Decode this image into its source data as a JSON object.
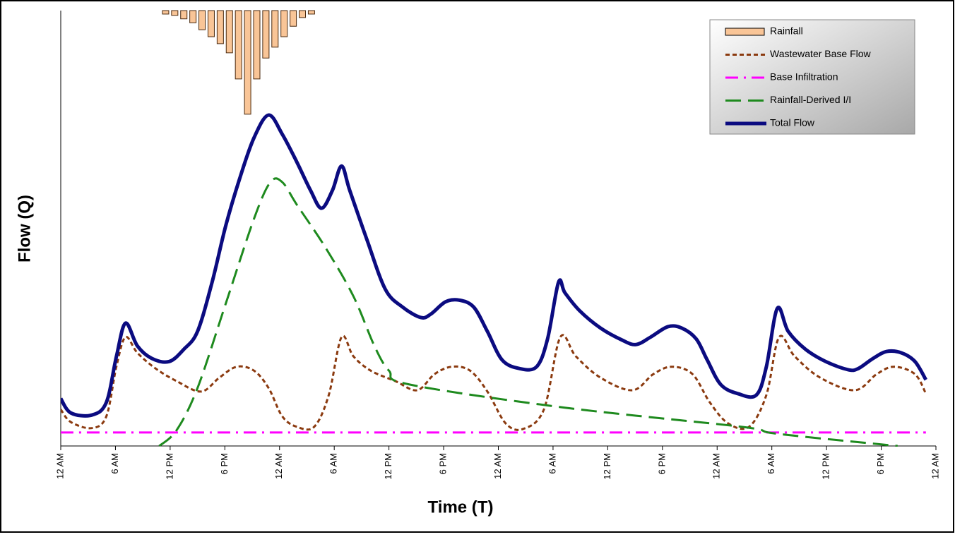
{
  "chart_data": {
    "type": "line",
    "xlabel": "Time (T)",
    "ylabel": "Flow (Q)",
    "xlim": [
      0,
      96
    ],
    "ylim": [
      0,
      100
    ],
    "y2lim": [
      100,
      0
    ],
    "xticks": [
      {
        "value": 0,
        "label": "12 AM"
      },
      {
        "value": 6,
        "label": "6 AM"
      },
      {
        "value": 12,
        "label": "12 PM"
      },
      {
        "value": 18,
        "label": "6 PM"
      },
      {
        "value": 24,
        "label": "12 AM"
      },
      {
        "value": 30,
        "label": "6 AM"
      },
      {
        "value": 36,
        "label": "12 PM"
      },
      {
        "value": 42,
        "label": "6 PM"
      },
      {
        "value": 48,
        "label": "12 AM"
      },
      {
        "value": 54,
        "label": "6 AM"
      },
      {
        "value": 60,
        "label": "12 PM"
      },
      {
        "value": 66,
        "label": "6 PM"
      },
      {
        "value": 72,
        "label": "12 AM"
      },
      {
        "value": 78,
        "label": "6 AM"
      },
      {
        "value": 84,
        "label": "12 PM"
      },
      {
        "value": 90,
        "label": "6 PM"
      },
      {
        "value": 96,
        "label": "12 AM"
      }
    ],
    "legend": "top-right",
    "series": [
      {
        "name": "Rainfall",
        "kind": "bar",
        "axis": "y2",
        "color": "#f9c597",
        "edge": "#4a2a10",
        "x": [
          11.5,
          12.5,
          13.5,
          14.5,
          15.5,
          16.5,
          17.5,
          18.5,
          19.5,
          20.5,
          21.5,
          22.5,
          23.5,
          24.5,
          25.5,
          26.5,
          27.5
        ],
        "values": [
          0.8,
          1.1,
          1.9,
          2.8,
          4.4,
          6.0,
          7.6,
          9.7,
          15.7,
          23.8,
          15.7,
          10.9,
          8.4,
          6.0,
          3.6,
          1.6,
          0.8
        ]
      },
      {
        "name": "Wastewater Base Flow",
        "kind": "line",
        "line_style": "dashed",
        "color": "#8b3a0f",
        "x": [
          0,
          1.1,
          3.4,
          5.0,
          6.1,
          7.1,
          8.4,
          10.4,
          12.7,
          15.4,
          17.4,
          19.3,
          21.2,
          22.8,
          24.3,
          25.9,
          27.8,
          29.4,
          30.8,
          32.1,
          34.0,
          36.7,
          39.1,
          41.0,
          42.9,
          44.9,
          46.8,
          48.8,
          50.7,
          53.0,
          54.8,
          56.5,
          59.2,
          62.7,
          65.0,
          67.0,
          69.3,
          71.2,
          73.2,
          75.5,
          77.4,
          78.8,
          80.5,
          83.3,
          87.1,
          89.5,
          91.4,
          93.7,
          94.9
        ],
        "values": [
          8.4,
          5.5,
          4.1,
          6.8,
          18.2,
          25.0,
          21.4,
          17.8,
          14.9,
          12.5,
          15.7,
          18.2,
          17.3,
          13.3,
          6.8,
          4.4,
          4.4,
          11.7,
          25.0,
          20.6,
          17.3,
          14.9,
          12.8,
          16.5,
          18.2,
          17.3,
          12.5,
          5.2,
          3.9,
          8.4,
          25.0,
          20.6,
          15.7,
          12.8,
          16.5,
          18.2,
          16.5,
          10.0,
          5.2,
          4.4,
          11.7,
          25.0,
          20.6,
          15.7,
          12.8,
          16.5,
          18.2,
          16.5,
          12.0
        ]
      },
      {
        "name": "Base Infiltration",
        "kind": "line",
        "line_style": "dashdot",
        "color": "#ff00ff",
        "x": [
          0,
          94.9
        ],
        "values": [
          3.1,
          3.1
        ]
      },
      {
        "name": "Rainfall-Derived I/I",
        "kind": "line",
        "line_style": "longdash",
        "color": "#1e8a1e",
        "x": [
          10.8,
          12.7,
          15.0,
          18.1,
          21.2,
          23.0,
          24.3,
          25.9,
          29.0,
          32.1,
          34.4,
          36.0,
          38.3,
          55.3,
          74.7,
          78.6,
          91.8
        ],
        "values": [
          0,
          3.6,
          13.3,
          32.7,
          52.2,
          60.6,
          60.6,
          55.4,
          45.7,
          34.4,
          23.0,
          17.3,
          14.1,
          8.8,
          4.4,
          2.8,
          0
        ]
      },
      {
        "name": "Total Flow",
        "kind": "line",
        "line_style": "solid",
        "color": "#0b0b80",
        "x": [
          0,
          1.1,
          3.4,
          5.0,
          6.1,
          7.1,
          8.4,
          10.0,
          11.9,
          13.5,
          15.0,
          16.6,
          18.1,
          19.7,
          21.2,
          22.8,
          24.3,
          25.9,
          27.4,
          28.6,
          29.8,
          30.8,
          31.7,
          33.6,
          35.6,
          37.5,
          39.5,
          40.6,
          42.2,
          43.7,
          45.3,
          46.8,
          48.4,
          50.3,
          52.2,
          53.4,
          54.6,
          55.3,
          56.9,
          59.2,
          61.6,
          63.1,
          64.7,
          66.6,
          68.1,
          69.7,
          70.9,
          72.4,
          74.3,
          76.3,
          77.4,
          78.6,
          79.8,
          81.7,
          84.0,
          86.4,
          87.5,
          89.1,
          90.6,
          92.2,
          93.7,
          94.9
        ],
        "values": [
          10.9,
          7.6,
          7.1,
          10.0,
          20.5,
          28.2,
          23.0,
          20.1,
          19.4,
          22.2,
          26.3,
          37.6,
          50.6,
          61.9,
          70.8,
          76.0,
          71.6,
          65.2,
          58.7,
          54.6,
          58.7,
          64.3,
          58.7,
          47.3,
          36.0,
          31.9,
          29.5,
          30.3,
          33.1,
          33.5,
          31.9,
          26.3,
          19.8,
          17.8,
          18.2,
          24.6,
          37.6,
          35.2,
          31.1,
          27.1,
          24.3,
          23.3,
          25.0,
          27.4,
          27.1,
          24.6,
          19.8,
          14.1,
          12.0,
          11.7,
          18.2,
          31.6,
          26.3,
          22.2,
          19.3,
          17.5,
          17.8,
          20.1,
          21.7,
          21.4,
          19.4,
          15.2
        ]
      }
    ]
  }
}
